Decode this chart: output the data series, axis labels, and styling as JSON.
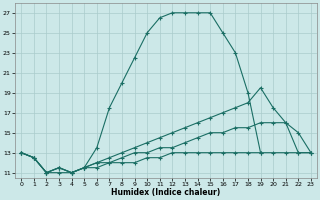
{
  "xlabel": "Humidex (Indice chaleur)",
  "bg_color": "#cce8e8",
  "grid_color": "#aacccc",
  "line_color": "#1a6e64",
  "xlim": [
    -0.5,
    23.5
  ],
  "ylim": [
    10.5,
    28.0
  ],
  "xticks": [
    0,
    1,
    2,
    3,
    4,
    5,
    6,
    7,
    8,
    9,
    10,
    11,
    12,
    13,
    14,
    15,
    16,
    17,
    18,
    19,
    20,
    21,
    22,
    23
  ],
  "yticks": [
    11,
    13,
    15,
    17,
    19,
    21,
    23,
    25,
    27
  ],
  "line1_x": [
    0,
    1,
    2,
    3,
    4,
    5,
    6,
    7,
    8,
    9,
    10,
    11,
    12,
    13,
    14,
    15,
    16,
    17,
    18,
    19
  ],
  "line1_y": [
    13,
    12.5,
    11,
    11,
    11,
    11.5,
    13.5,
    17.5,
    20,
    22.5,
    25,
    26.5,
    27,
    27,
    27,
    27,
    25,
    23,
    19,
    13
  ],
  "line2_x": [
    0,
    1,
    2,
    3,
    4,
    5,
    6,
    7,
    8,
    9,
    10,
    11,
    12,
    13,
    14,
    15,
    16,
    17,
    18,
    19,
    20,
    21,
    22,
    23
  ],
  "line2_y": [
    13,
    12.5,
    11,
    11.5,
    11,
    11.5,
    12,
    12.5,
    13,
    13.5,
    14,
    14.5,
    15,
    15.5,
    16,
    16.5,
    17,
    17.5,
    18,
    19.5,
    17.5,
    16,
    15,
    13
  ],
  "line3_x": [
    0,
    1,
    2,
    3,
    4,
    5,
    6,
    7,
    8,
    9,
    10,
    11,
    12,
    13,
    14,
    15,
    16,
    17,
    18,
    19,
    20,
    21,
    22,
    23
  ],
  "line3_y": [
    13,
    12.5,
    11,
    11.5,
    11,
    11.5,
    12,
    12,
    12.5,
    13,
    13,
    13.5,
    13.5,
    14,
    14.5,
    15,
    15,
    15.5,
    15.5,
    16,
    16,
    16,
    13,
    13
  ],
  "line4_x": [
    0,
    1,
    2,
    3,
    4,
    5,
    6,
    7,
    8,
    9,
    10,
    11,
    12,
    13,
    14,
    15,
    16,
    17,
    18,
    19,
    20,
    21,
    22,
    23
  ],
  "line4_y": [
    13,
    12.5,
    11,
    11.5,
    11,
    11.5,
    11.5,
    12,
    12,
    12,
    12.5,
    12.5,
    13,
    13,
    13,
    13,
    13,
    13,
    13,
    13,
    13,
    13,
    13,
    13
  ]
}
